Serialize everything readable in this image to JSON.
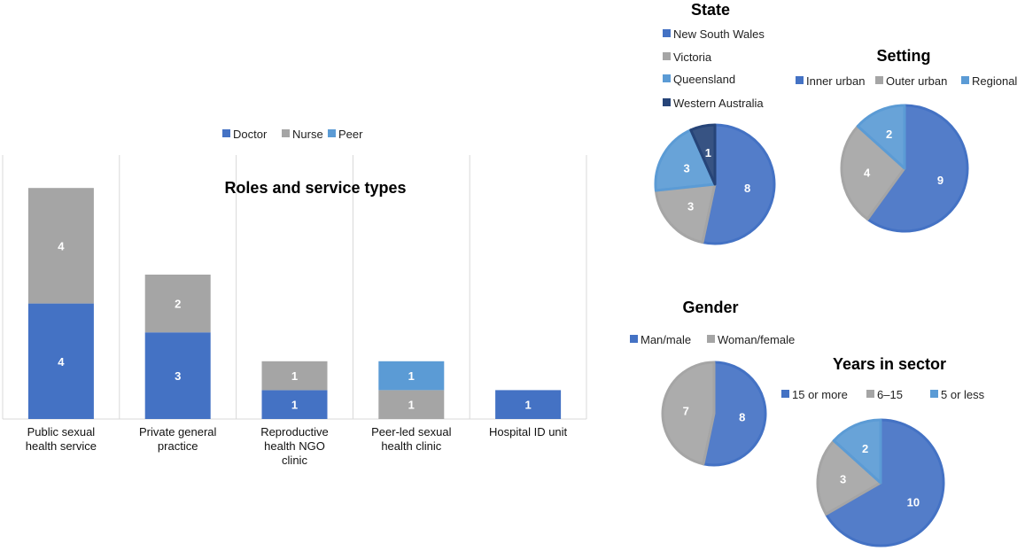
{
  "colors": {
    "doctor": "#4472C4",
    "nurse": "#A5A5A5",
    "peer": "#5B9BD5",
    "dark": "#264478"
  },
  "chart_data": [
    {
      "type": "bar",
      "stacked": true,
      "title": "Roles and service types",
      "legend_position": "top",
      "categories": [
        "Public sexual health service",
        "Private general practice",
        "Reproductive health NGO clinic",
        "Peer-led sexual health clinic",
        "Hospital ID unit"
      ],
      "series": [
        {
          "name": "Doctor",
          "values": [
            4,
            3,
            1,
            0,
            1
          ]
        },
        {
          "name": "Nurse",
          "values": [
            4,
            2,
            1,
            1,
            0
          ]
        },
        {
          "name": "Peer",
          "values": [
            0,
            0,
            0,
            1,
            0
          ]
        }
      ],
      "ylim": [
        0,
        10
      ]
    },
    {
      "type": "pie",
      "title": "State",
      "legend_position": "top",
      "labels": [
        "New South Wales",
        "Victoria",
        "Queensland",
        "Western Australia"
      ],
      "values": [
        8,
        3,
        3,
        1
      ]
    },
    {
      "type": "pie",
      "title": "Setting",
      "legend_position": "top",
      "labels": [
        "Inner urban",
        "Outer urban",
        "Regional"
      ],
      "values": [
        9,
        4,
        2
      ]
    },
    {
      "type": "pie",
      "title": "Gender",
      "legend_position": "top",
      "labels": [
        "Man/male",
        "Woman/female"
      ],
      "values": [
        8,
        7
      ]
    },
    {
      "type": "pie",
      "title": "Years in sector",
      "legend_position": "top",
      "labels": [
        "15 or more",
        "6–15",
        "5 or less"
      ],
      "values": [
        10,
        3,
        2
      ]
    }
  ]
}
